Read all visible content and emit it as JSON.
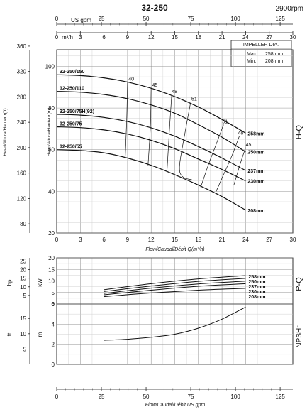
{
  "header": {
    "title": "32-250",
    "speed": "2900rpm"
  },
  "top_axis": {
    "usgpm_label": "US gpm",
    "usgpm_ticks": [
      "0",
      "25",
      "50",
      "75",
      "100",
      "125"
    ],
    "m3h_label": "m³/h",
    "m3h_ticks": [
      "0",
      "3",
      "6",
      "9",
      "12",
      "15",
      "18",
      "21",
      "24",
      "27",
      "30"
    ]
  },
  "impeller_box": {
    "heading": "IMPELLER DIA.",
    "max_label": "Max.",
    "max_value": "258 mm",
    "min_label": "Min.",
    "min_value": "208 mm"
  },
  "side_labels": {
    "hq": "H-Q",
    "pq": "P-Q",
    "npsh": "NPSHr"
  },
  "chart_data": [
    {
      "type": "line",
      "id": "hq",
      "xlabel": "Flow/Caudal/Débit Q(m³/h)",
      "ylabel": "Head/Altura/Hauteur(m)",
      "ylabel2": "Head/Altura/Hauteur(ft)",
      "xlim": [
        0,
        30
      ],
      "ylim": [
        20,
        108
      ],
      "x_ticks": [
        "0",
        "3",
        "6",
        "9",
        "12",
        "15",
        "18",
        "21",
        "24",
        "27",
        "30"
      ],
      "y_ticks": [
        "20",
        "40",
        "60",
        "80",
        "100"
      ],
      "ft_ticks": [
        "80",
        "120",
        "160",
        "200",
        "240",
        "280",
        "320",
        "360"
      ],
      "grid": true,
      "series": [
        {
          "name": "258mm",
          "left_label": "32-250/150",
          "x": [
            0,
            3,
            6,
            9,
            12,
            15,
            18,
            21,
            24
          ],
          "y": [
            96,
            95.6,
            94.5,
            92.5,
            89.5,
            85.5,
            80.5,
            74.5,
            68
          ]
        },
        {
          "name": "250mm",
          "left_label": "32-250/110",
          "x": [
            0,
            3,
            6,
            9,
            12,
            15,
            18,
            21,
            24
          ],
          "y": [
            88,
            87.6,
            86.5,
            84.5,
            81.5,
            77.5,
            72,
            66,
            59
          ]
        },
        {
          "name": "237mm",
          "left_label": "32-250/75H(92)",
          "x": [
            0,
            3,
            6,
            9,
            12,
            15,
            18,
            21,
            24
          ],
          "y": [
            77,
            76.6,
            75.5,
            73.5,
            70.5,
            66.5,
            61.5,
            56,
            50
          ]
        },
        {
          "name": "230mm",
          "left_label": "32-250/75",
          "x": [
            0,
            3,
            6,
            9,
            12,
            15,
            18,
            21,
            24
          ],
          "y": [
            71,
            70.6,
            69.5,
            67.5,
            64.5,
            60.5,
            55.5,
            50.5,
            45
          ]
        },
        {
          "name": "208mm",
          "left_label": "32-250/55",
          "x": [
            0,
            3,
            6,
            9,
            12,
            15,
            18,
            21,
            24
          ],
          "y": [
            60,
            59.6,
            58.5,
            56,
            52.5,
            48,
            43,
            37.5,
            31
          ]
        }
      ],
      "efficiency_labels": [
        {
          "text": "40",
          "x": 9.3,
          "y": 92.5
        },
        {
          "text": "45",
          "x": 12.3,
          "y": 89.5
        },
        {
          "text": "48",
          "x": 14.8,
          "y": 86.5
        },
        {
          "text": "51",
          "x": 17.3,
          "y": 83
        },
        {
          "text": "51",
          "x": 21.2,
          "y": 72
        },
        {
          "text": "48",
          "x": 23.2,
          "y": 66.5
        },
        {
          "text": "45",
          "x": 24.2,
          "y": 61
        }
      ],
      "efficiency_lines": [
        {
          "x": [
            9.0,
            8.9,
            8.7
          ],
          "y": [
            92.5,
            75,
            56
          ]
        },
        {
          "x": [
            12.0,
            11.9,
            11.6
          ],
          "y": [
            89.5,
            71,
            52.5
          ]
        },
        {
          "x": [
            14.6,
            14.3,
            14.0
          ],
          "y": [
            86,
            68,
            49
          ]
        },
        {
          "x": [
            17.0,
            16.2,
            15.6,
            16.0,
            17.2
          ],
          "y": [
            82.5,
            66,
            52,
            47,
            45.5
          ]
        },
        {
          "x": [
            21.2,
            20.2,
            19.2,
            18.3
          ],
          "y": [
            72,
            62,
            52,
            42
          ]
        },
        {
          "x": [
            23.2,
            22.3,
            21.2,
            20.2
          ],
          "y": [
            66.5,
            57.5,
            48,
            39.5
          ]
        },
        {
          "x": [
            24.0,
            23.3,
            22.5
          ],
          "y": [
            61,
            53,
            43
          ]
        }
      ]
    },
    {
      "type": "line",
      "id": "pq",
      "ylabel": "kW",
      "ylabel2": "hp",
      "xlim": [
        0,
        30
      ],
      "ylim": [
        0,
        20
      ],
      "y_ticks": [
        "0",
        "5",
        "10",
        "15",
        "20"
      ],
      "hp_ticks": [
        "5",
        "10",
        "15",
        "20",
        "25"
      ],
      "grid": true,
      "series": [
        {
          "name": "258mm",
          "x": [
            6,
            12,
            18,
            24
          ],
          "y": [
            6.2,
            8.8,
            10.9,
            12.3
          ]
        },
        {
          "name": "250mm",
          "x": [
            6,
            12,
            18,
            24
          ],
          "y": [
            5.4,
            7.8,
            9.8,
            11.1
          ]
        },
        {
          "name": "237mm",
          "x": [
            6,
            12,
            18,
            24
          ],
          "y": [
            4.6,
            6.9,
            8.7,
            9.9
          ]
        },
        {
          "name": "230mm",
          "x": [
            6,
            12,
            18,
            24
          ],
          "y": [
            4.0,
            6.0,
            7.7,
            8.8
          ]
        },
        {
          "name": "208mm",
          "x": [
            6,
            12,
            18,
            24
          ],
          "y": [
            3.2,
            4.8,
            6.0,
            6.8
          ]
        }
      ]
    },
    {
      "type": "line",
      "id": "npsh",
      "ylabel": "m",
      "ylabel2": "ft",
      "xlabel": "Flow/Caudal/Débit  US gpm",
      "xlim": [
        0,
        30
      ],
      "ylim": [
        0,
        6
      ],
      "y_ticks": [
        "0",
        "2",
        "4",
        "6"
      ],
      "ft_ticks": [
        "5",
        "10",
        "15"
      ],
      "x_ticks_usgpm": [
        "0",
        "25",
        "50",
        "75",
        "100",
        "125"
      ],
      "grid": true,
      "series": [
        {
          "name": "NPSHr",
          "x": [
            6,
            9,
            12,
            15,
            18,
            21,
            24
          ],
          "y": [
            2.4,
            2.5,
            2.7,
            3.0,
            3.6,
            4.5,
            5.7
          ]
        }
      ]
    }
  ]
}
